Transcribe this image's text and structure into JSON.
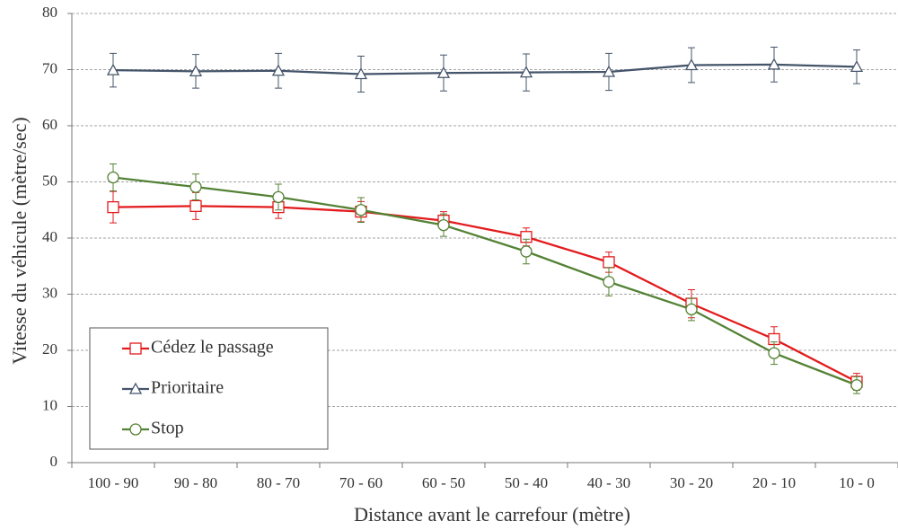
{
  "chart_data": {
    "type": "line",
    "x_label": "Distance avant le carrefour (mètre)",
    "y_label": "Vitesse du véhicule (mètre/sec)",
    "categories": [
      "100 - 90",
      "90 - 80",
      "80 - 70",
      "70 - 60",
      "60 - 50",
      "50 - 40",
      "40 - 30",
      "30 - 20",
      "20 - 10",
      "10 - 0"
    ],
    "series": [
      {
        "name": "Cédez le passage",
        "color": "#e31a1c",
        "marker": "square",
        "values": [
          45.5,
          45.7,
          45.5,
          44.7,
          43.1,
          40.2,
          35.7,
          28.3,
          22.0,
          14.4
        ],
        "errors": [
          2.8,
          2.4,
          2.0,
          1.8,
          1.6,
          1.6,
          1.8,
          2.5,
          2.2,
          1.5
        ]
      },
      {
        "name": "Prioritaire",
        "color": "#44546a",
        "marker": "triangle",
        "values": [
          69.9,
          69.7,
          69.8,
          69.2,
          69.4,
          69.5,
          69.6,
          70.8,
          70.9,
          70.5
        ],
        "errors": [
          3.0,
          3.0,
          3.1,
          3.2,
          3.2,
          3.3,
          3.3,
          3.1,
          3.1,
          3.0
        ]
      },
      {
        "name": "Stop",
        "color": "#548235",
        "marker": "circle",
        "values": [
          50.8,
          49.1,
          47.3,
          45.0,
          42.3,
          37.6,
          32.2,
          27.3,
          19.5,
          13.8
        ],
        "errors": [
          2.4,
          2.3,
          2.3,
          2.2,
          2.0,
          2.2,
          2.5,
          2.0,
          2.0,
          1.5
        ]
      }
    ],
    "ylim": [
      0,
      80
    ],
    "yticks": [
      0,
      10,
      20,
      30,
      40,
      50,
      60,
      70,
      80
    ],
    "grid": true,
    "legend": "lower left"
  }
}
